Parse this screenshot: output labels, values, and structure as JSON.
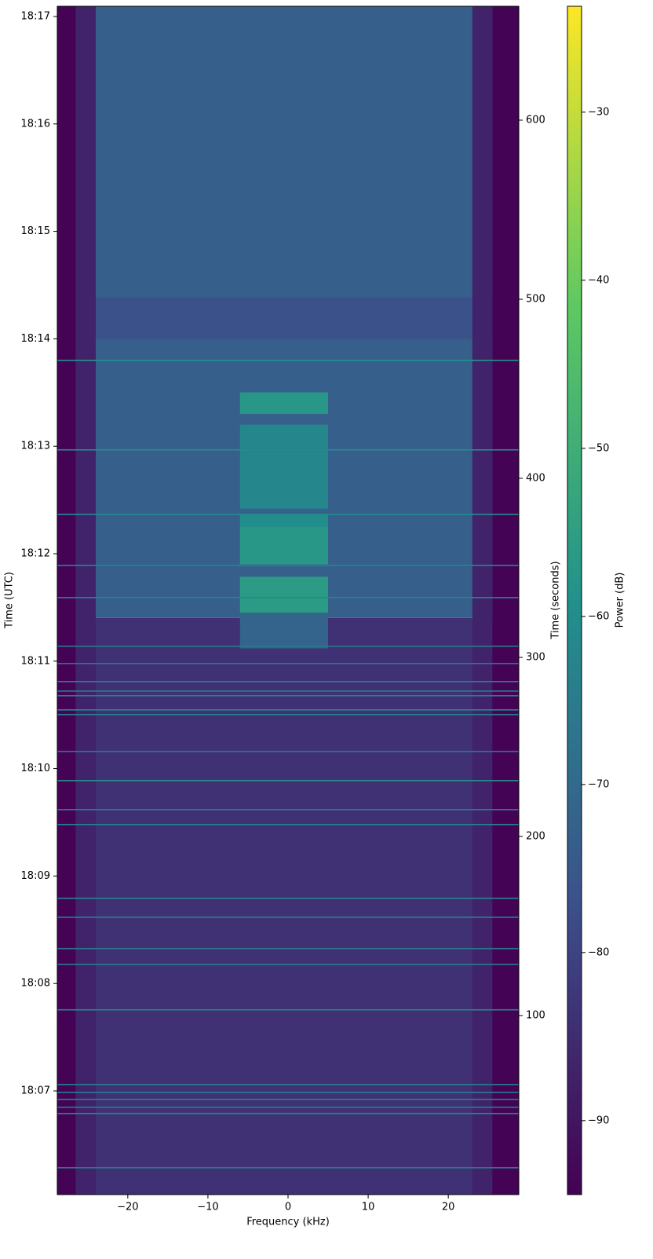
{
  "chart_data": {
    "type": "heatmap",
    "xlabel": "Frequency (kHz)",
    "ylabel": "Time (UTC)",
    "y2label": "Time (seconds)",
    "xlim": [
      -28.8,
      28.8
    ],
    "xticks": [
      {
        "value": -20,
        "label": "−20"
      },
      {
        "value": -10,
        "label": "−10"
      },
      0,
      10,
      20
    ],
    "ylim": [
      0,
      663.6
    ],
    "yticks": [
      {
        "value": 57.9,
        "label": "18:07"
      },
      {
        "value": 117.9,
        "label": "18:08"
      },
      {
        "value": 177.9,
        "label": "18:09"
      },
      {
        "value": 237.9,
        "label": "18:10"
      },
      {
        "value": 297.9,
        "label": "18:11"
      },
      {
        "value": 357.9,
        "label": "18:12"
      },
      {
        "value": 417.9,
        "label": "18:13"
      },
      {
        "value": 477.9,
        "label": "18:14"
      },
      {
        "value": 537.9,
        "label": "18:15"
      },
      {
        "value": 597.9,
        "label": "18:16"
      },
      {
        "value": 657.9,
        "label": "18:17"
      }
    ],
    "y2lim": [
      0,
      663.6
    ],
    "y2ticks": [
      100,
      200,
      300,
      400,
      500,
      600
    ],
    "colorbar": {
      "label": "Power (dB)",
      "colormap": "viridis",
      "lim": [
        -94.4,
        -23.7
      ],
      "ticks": [
        {
          "value": -90,
          "label": "−90"
        },
        {
          "value": -80,
          "label": "−80"
        },
        {
          "value": -70,
          "label": "−70"
        },
        {
          "value": -60,
          "label": "−60"
        },
        {
          "value": -50,
          "label": "−50"
        },
        {
          "value": -40,
          "label": "−40"
        },
        {
          "value": -30,
          "label": "−30"
        }
      ]
    },
    "regions": [
      {
        "f": [
          -28.8,
          28.8
        ],
        "t": [
          0,
          322
        ],
        "power": -84
      },
      {
        "f": [
          -28.8,
          28.8
        ],
        "t": [
          322,
          663.6
        ],
        "power": -73
      },
      {
        "f": [
          -28.8,
          28.8
        ],
        "t": [
          478,
          501
        ],
        "power": -77
      },
      {
        "f": [
          -26.5,
          -24
        ],
        "t": [
          0,
          663.6
        ],
        "power": -87
      },
      {
        "f": [
          23,
          25.5
        ],
        "t": [
          0,
          663.6
        ],
        "power": -87
      },
      {
        "f": [
          -28.8,
          -26.5
        ],
        "t": [
          0,
          663.6
        ],
        "power": -94
      },
      {
        "f": [
          25.5,
          28.8
        ],
        "t": [
          0,
          663.6
        ],
        "power": -94
      },
      {
        "f": [
          -6,
          5
        ],
        "t": [
          305,
          325
        ],
        "power": -72
      },
      {
        "f": [
          -6,
          5
        ],
        "t": [
          325,
          345
        ],
        "power": -56
      },
      {
        "f": [
          -6,
          5
        ],
        "t": [
          352,
          373
        ],
        "power": -57
      },
      {
        "f": [
          -6,
          5
        ],
        "t": [
          373,
          380
        ],
        "power": -60
      },
      {
        "f": [
          -6,
          5
        ],
        "t": [
          383,
          430
        ],
        "power": -62
      },
      {
        "f": [
          -6,
          5
        ],
        "t": [
          436,
          448
        ],
        "power": -57
      }
    ],
    "signals": [
      {
        "t": 465.8,
        "power": -58
      },
      {
        "t": 415.8,
        "power": -60
      },
      {
        "t": 379.8,
        "power": -60
      },
      {
        "t": 351.3,
        "power": -62
      },
      {
        "t": 333.3,
        "power": -62
      },
      {
        "t": 306.1,
        "power": -66
      },
      {
        "t": 296.5,
        "power": -66
      },
      {
        "t": 286.4,
        "power": -64
      },
      {
        "t": 281.1,
        "power": -64
      },
      {
        "t": 278.5,
        "power": -64
      },
      {
        "t": 270.6,
        "power": -62
      },
      {
        "t": 268.0,
        "power": -64
      },
      {
        "t": 247.4,
        "power": -66
      },
      {
        "t": 231.1,
        "power": -58
      },
      {
        "t": 214.9,
        "power": -64
      },
      {
        "t": 206.6,
        "power": -62
      },
      {
        "t": 165.4,
        "power": -62
      },
      {
        "t": 154.8,
        "power": -62
      },
      {
        "t": 137.3,
        "power": -66
      },
      {
        "t": 128.5,
        "power": -64
      },
      {
        "t": 103.1,
        "power": -62
      },
      {
        "t": 61.4,
        "power": -64
      },
      {
        "t": 57.0,
        "power": -64
      },
      {
        "t": 53.1,
        "power": -64
      },
      {
        "t": 48.7,
        "power": -64
      },
      {
        "t": 45.2,
        "power": -62
      },
      {
        "t": 14.9,
        "power": -66
      }
    ]
  }
}
